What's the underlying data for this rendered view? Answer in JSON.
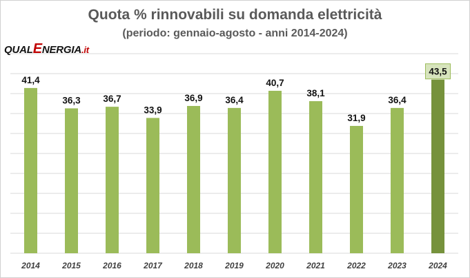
{
  "header": {
    "title": "Quota % rinnovabili su domanda elettricità",
    "subtitle": "(periodo: gennaio-agosto - anni 2014-2024)"
  },
  "logo": {
    "part1": "QUAL",
    "part2": "E",
    "part3": "NERGIA",
    "part4": ".it"
  },
  "colors": {
    "bar": "#9bbb59",
    "bar_highlight": "#76923c",
    "highlight_label_bg": "#d7e4bd",
    "grid": "#d9d9d9"
  },
  "chart_data": {
    "type": "bar",
    "title": "Quota % rinnovabili su domanda elettricità",
    "subtitle": "(periodo: gennaio-agosto - anni 2014-2024)",
    "categories": [
      "2014",
      "2015",
      "2016",
      "2017",
      "2018",
      "2019",
      "2020",
      "2021",
      "2022",
      "2023",
      "2024"
    ],
    "values": [
      41.4,
      36.3,
      36.7,
      33.9,
      36.9,
      36.4,
      40.7,
      38.1,
      31.9,
      36.4,
      43.5
    ],
    "value_labels": [
      "41,4",
      "36,3",
      "36,7",
      "33,9",
      "36,9",
      "36,4",
      "40,7",
      "38,1",
      "31,9",
      "36,4",
      "43,5"
    ],
    "highlight_index": 10,
    "xlabel": "",
    "ylabel": "",
    "ylim": [
      0,
      50
    ],
    "grid": true,
    "gridline_step": 5,
    "legend": "none"
  }
}
